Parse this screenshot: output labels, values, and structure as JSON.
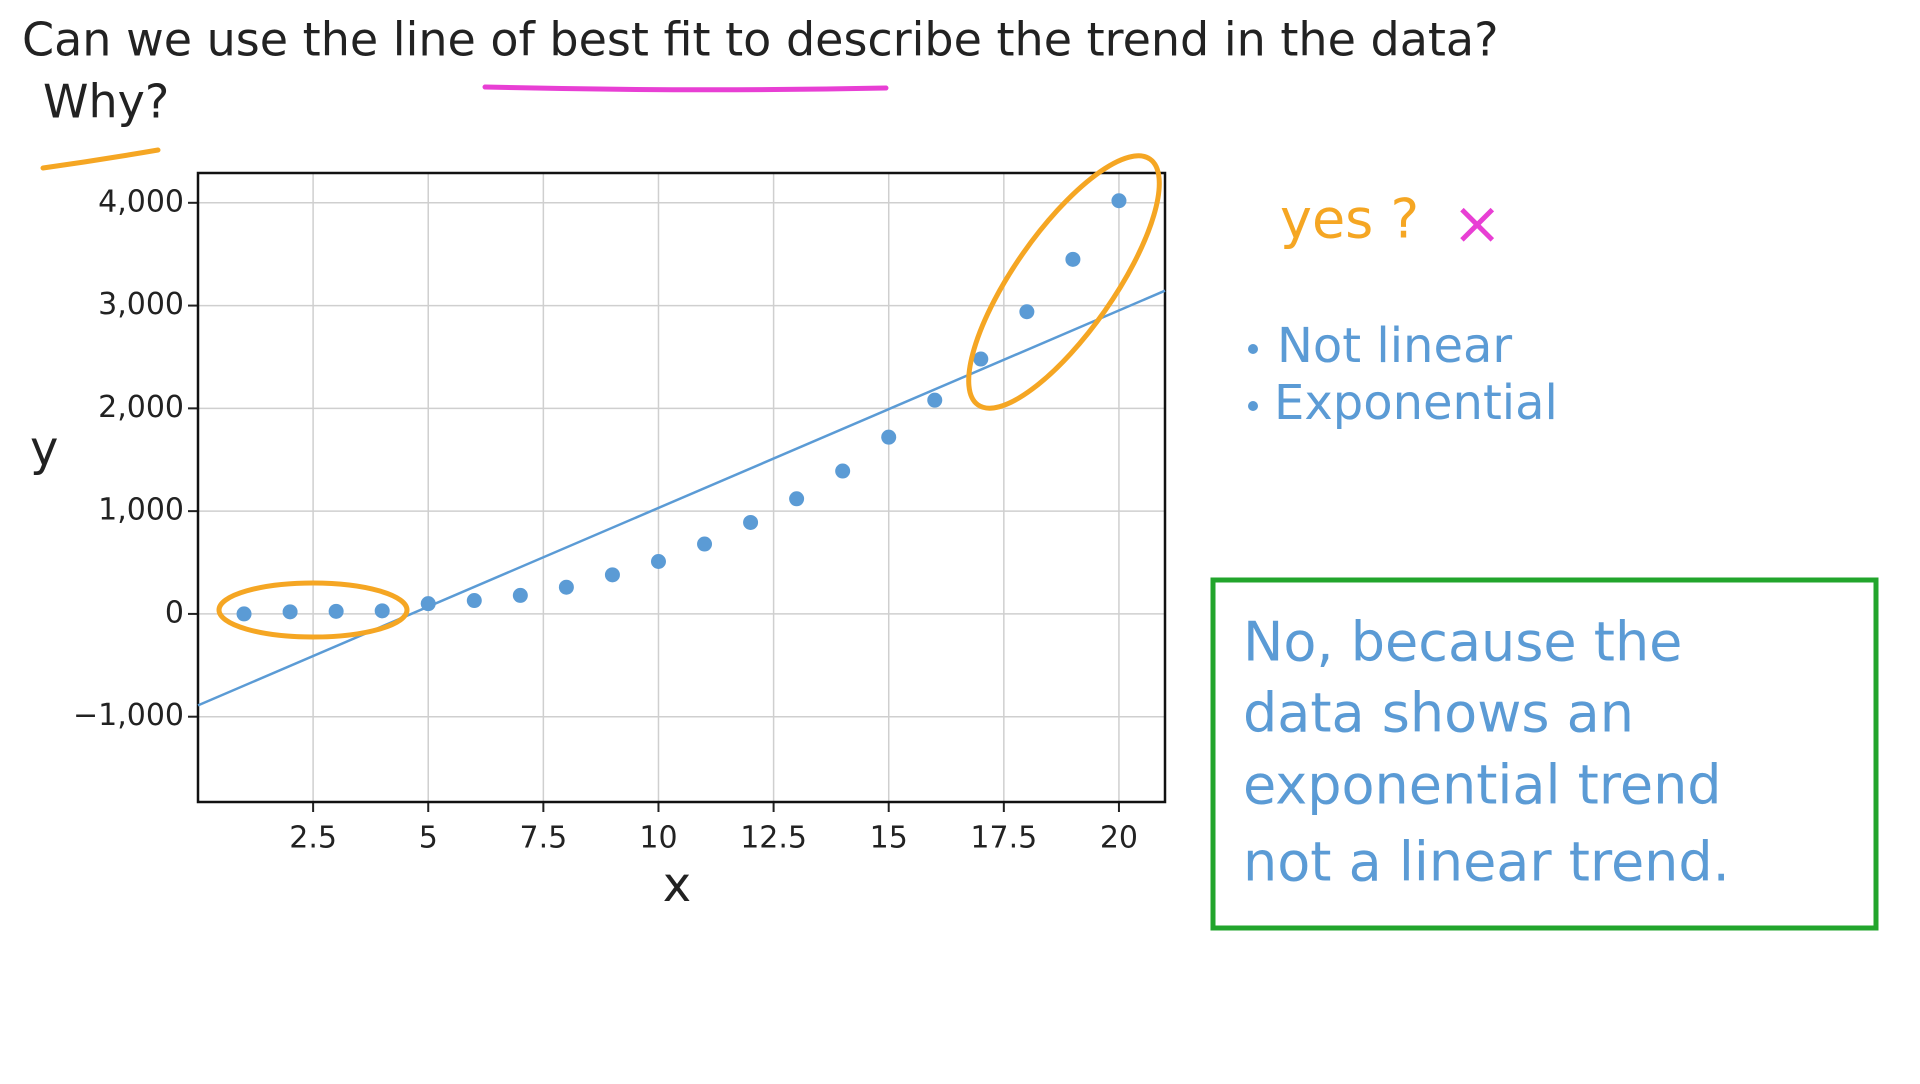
{
  "chart_data": {
    "type": "scatter",
    "title": "Can we use the line of best fit to describe the trend in the data?",
    "subtitle": "Why?",
    "x_label": "x",
    "y_label": "y",
    "x": [
      1,
      2,
      3,
      4,
      5,
      6,
      7,
      8,
      9,
      10,
      11,
      12,
      13,
      14,
      15,
      16,
      17,
      18,
      19,
      20
    ],
    "values": [
      0,
      20,
      25,
      30,
      100,
      130,
      180,
      260,
      380,
      510,
      680,
      890,
      1120,
      1390,
      1720,
      2080,
      2480,
      2940,
      3450,
      4020
    ],
    "color": "#5b9bd5",
    "fit_line": {
      "x": [
        0,
        21
      ],
      "values": [
        -890,
        3145
      ],
      "color": "#5b9bd5"
    },
    "xlim": [
      0,
      21
    ],
    "ylim": [
      -1830,
      4290
    ],
    "xticks": [
      2.5,
      5,
      7.5,
      10,
      12.5,
      15,
      17.5,
      20
    ],
    "yticks": [
      {
        "value": -1000,
        "label": "−1,000"
      },
      0,
      {
        "value": 1000,
        "label": "1,000"
      },
      {
        "value": 2000,
        "label": "2,000"
      },
      {
        "value": 3000,
        "label": "3,000"
      },
      {
        "value": 4000,
        "label": "4,000"
      }
    ],
    "grid": true,
    "notes": {
      "guess": "yes ?",
      "mark": "×",
      "bullets": [
        "Not linear",
        "Exponential"
      ]
    },
    "answer": [
      "No, because the",
      "data shows an",
      "exponential trend",
      "not a linear trend."
    ]
  }
}
